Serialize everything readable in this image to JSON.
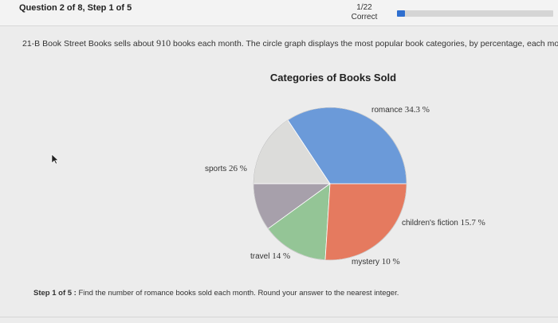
{
  "header": {
    "question": "Question 2 of 8, Step 1 of 5",
    "progress_count": "1/22",
    "progress_status": "Correct",
    "progress_fraction": 0.05,
    "progress_color": "#2f6fcf"
  },
  "problem": {
    "prefix": "21-B Book Street Books sells about ",
    "number": "910",
    "suffix": " books each month. The circle graph displays the most popular book categories, by percentage, each month."
  },
  "chart_data": {
    "type": "pie",
    "title": "Categories of Books Sold",
    "slices": [
      {
        "label": "romance",
        "value": 34.3,
        "unit": "%",
        "color": "#6b9ad9"
      },
      {
        "label": "children's fiction",
        "value": 15.7,
        "unit": "%",
        "color": "#dcdcda"
      },
      {
        "label": "mystery",
        "value": 10,
        "unit": "%",
        "color": "#a7a0ab"
      },
      {
        "label": "travel",
        "value": 14,
        "unit": "%",
        "color": "#94c596"
      },
      {
        "label": "sports",
        "value": 26,
        "unit": "%",
        "color": "#e57a5f"
      }
    ]
  },
  "step": {
    "label": "Step 1 of 5 :",
    "text": " Find the number of romance books sold each month. Round your answer to the nearest integer."
  },
  "icons": {
    "cursor": "mouse-pointer-icon"
  }
}
